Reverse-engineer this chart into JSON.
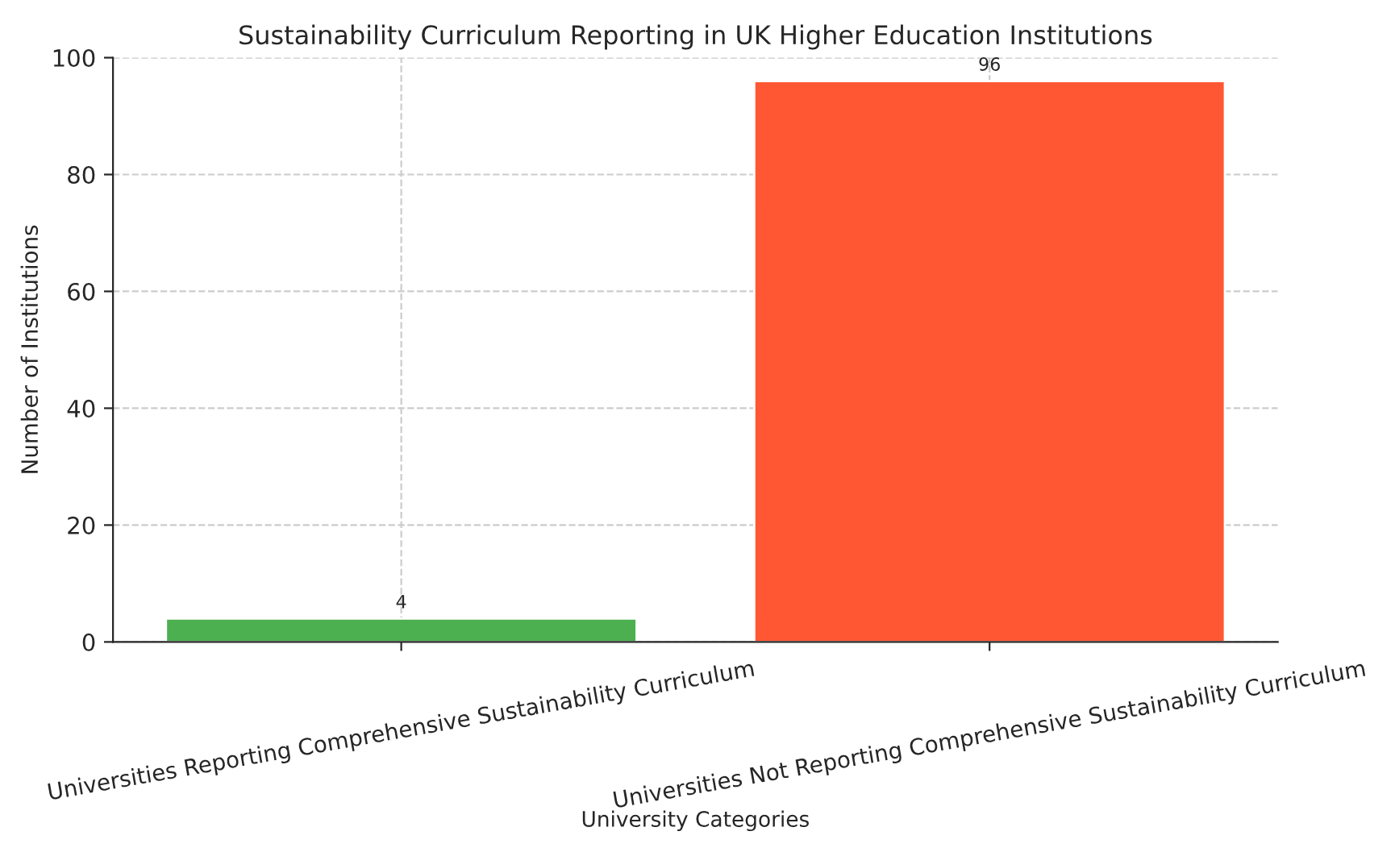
{
  "chart_data": {
    "type": "bar",
    "title": "Sustainability Curriculum Reporting in UK Higher Education Institutions",
    "xlabel": "University Categories",
    "ylabel": "Number of Institutions",
    "categories": [
      "Universities Reporting Comprehensive Sustainability Curriculum",
      "Universities Not Reporting Comprehensive Sustainability Curriculum"
    ],
    "values": [
      4,
      96
    ],
    "colors": [
      "#4caf50",
      "#ff5733"
    ],
    "ylim": [
      0,
      100
    ],
    "yticks": [
      0,
      20,
      40,
      60,
      80,
      100
    ],
    "grid": true,
    "data_labels": true
  }
}
